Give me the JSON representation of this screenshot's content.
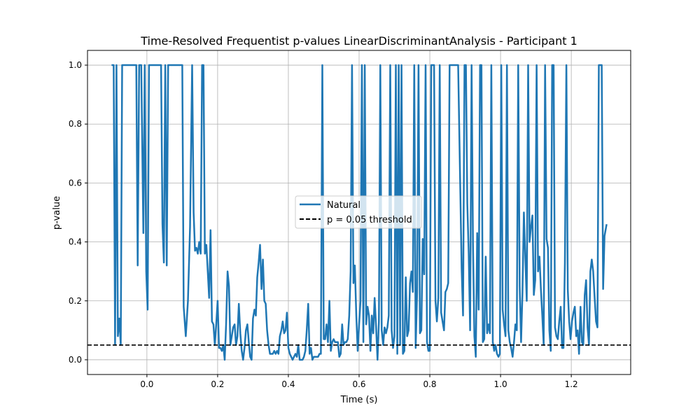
{
  "chart_data": {
    "type": "line",
    "title": "Time-Resolved Frequentist p-values LinearDiscriminantAnalysis - Participant 1",
    "xlabel": "Time (s)",
    "ylabel": "p-value",
    "xlim": [
      -0.168,
      1.368
    ],
    "ylim": [
      -0.05,
      1.05
    ],
    "xticks": [
      0.0,
      0.2,
      0.4,
      0.6,
      0.8,
      1.0,
      1.2
    ],
    "xtick_labels": [
      "0.0",
      "0.2",
      "0.4",
      "0.6",
      "0.8",
      "1.0",
      "1.2"
    ],
    "yticks": [
      0.0,
      0.2,
      0.4,
      0.6,
      0.8,
      1.0
    ],
    "ytick_labels": [
      "0.0",
      "0.2",
      "0.4",
      "0.6",
      "0.8",
      "1.0"
    ],
    "grid": true,
    "legend_position": "center-right",
    "series": [
      {
        "name": "Natural",
        "color": "#1f77b4",
        "style": "solid",
        "x": [
          -0.1,
          -0.094,
          -0.09,
          -0.086,
          -0.082,
          -0.078,
          -0.074,
          -0.07,
          -0.066,
          -0.06,
          -0.05,
          -0.04,
          -0.03,
          -0.026,
          -0.022,
          -0.016,
          -0.01,
          -0.006,
          -0.002,
          0.002,
          0.006,
          0.01,
          0.016,
          0.022,
          0.03,
          0.04,
          0.044,
          0.048,
          0.052,
          0.056,
          0.06,
          0.064,
          0.07,
          0.08,
          0.09,
          0.1,
          0.104,
          0.11,
          0.116,
          0.122,
          0.128,
          0.132,
          0.136,
          0.14,
          0.144,
          0.148,
          0.152,
          0.156,
          0.16,
          0.164,
          0.168,
          0.172,
          0.176,
          0.18,
          0.184,
          0.188,
          0.192,
          0.196,
          0.2,
          0.204,
          0.208,
          0.212,
          0.216,
          0.22,
          0.224,
          0.228,
          0.232,
          0.236,
          0.24,
          0.244,
          0.248,
          0.252,
          0.256,
          0.26,
          0.264,
          0.268,
          0.272,
          0.276,
          0.28,
          0.284,
          0.288,
          0.292,
          0.296,
          0.3,
          0.304,
          0.308,
          0.312,
          0.316,
          0.32,
          0.324,
          0.328,
          0.332,
          0.336,
          0.34,
          0.344,
          0.348,
          0.352,
          0.356,
          0.36,
          0.364,
          0.368,
          0.372,
          0.376,
          0.38,
          0.384,
          0.388,
          0.392,
          0.396,
          0.4,
          0.404,
          0.408,
          0.412,
          0.416,
          0.42,
          0.424,
          0.428,
          0.432,
          0.436,
          0.44,
          0.444,
          0.448,
          0.452,
          0.456,
          0.46,
          0.464,
          0.468,
          0.472,
          0.476,
          0.48,
          0.484,
          0.488,
          0.492,
          0.496,
          0.5,
          0.504,
          0.508,
          0.512,
          0.516,
          0.52,
          0.524,
          0.528,
          0.532,
          0.536,
          0.54,
          0.544,
          0.548,
          0.552,
          0.556,
          0.56,
          0.564,
          0.568,
          0.572,
          0.576,
          0.58,
          0.584,
          0.588,
          0.592,
          0.596,
          0.6,
          0.604,
          0.608,
          0.612,
          0.616,
          0.62,
          0.624,
          0.628,
          0.632,
          0.636,
          0.64,
          0.644,
          0.648,
          0.652,
          0.656,
          0.66,
          0.664,
          0.668,
          0.672,
          0.676,
          0.68,
          0.684,
          0.688,
          0.692,
          0.696,
          0.7,
          0.704,
          0.708,
          0.712,
          0.716,
          0.72,
          0.724,
          0.728,
          0.732,
          0.736,
          0.74,
          0.744,
          0.748,
          0.752,
          0.756,
          0.76,
          0.764,
          0.768,
          0.772,
          0.776,
          0.78,
          0.784,
          0.788,
          0.792,
          0.796,
          0.8,
          0.804,
          0.808,
          0.812,
          0.816,
          0.82,
          0.824,
          0.828,
          0.832,
          0.836,
          0.84,
          0.844,
          0.848,
          0.852,
          0.856,
          0.86,
          0.864,
          0.87,
          0.88,
          0.89,
          0.894,
          0.898,
          0.902,
          0.906,
          0.91,
          0.914,
          0.918,
          0.922,
          0.926,
          0.93,
          0.934,
          0.938,
          0.942,
          0.946,
          0.95,
          0.954,
          0.958,
          0.962,
          0.966,
          0.97,
          0.974,
          0.978,
          0.982,
          0.986,
          0.99,
          0.994,
          0.998,
          1.002,
          1.006,
          1.01,
          1.014,
          1.018,
          1.022,
          1.026,
          1.03,
          1.034,
          1.038,
          1.042,
          1.046,
          1.05,
          1.054,
          1.058,
          1.062,
          1.066,
          1.07,
          1.074,
          1.078,
          1.082,
          1.086,
          1.09,
          1.094,
          1.098,
          1.102,
          1.106,
          1.11,
          1.114,
          1.118,
          1.122,
          1.126,
          1.13,
          1.134,
          1.138,
          1.142,
          1.146,
          1.15,
          1.154,
          1.158,
          1.162,
          1.166,
          1.17,
          1.174,
          1.178,
          1.182,
          1.186,
          1.19,
          1.194,
          1.198,
          1.202,
          1.206,
          1.21,
          1.214,
          1.218,
          1.222,
          1.226,
          1.23,
          1.234,
          1.238,
          1.242,
          1.246,
          1.25,
          1.254,
          1.258,
          1.262,
          1.266,
          1.27,
          1.274,
          1.278,
          1.282,
          1.286,
          1.29,
          1.294,
          1.3
        ],
        "y": [
          1.0,
          1.0,
          0.05,
          1.0,
          0.08,
          0.14,
          0.05,
          1.0,
          1.0,
          1.0,
          1.0,
          1.0,
          1.0,
          0.32,
          1.0,
          1.0,
          0.43,
          1.0,
          0.3,
          0.17,
          1.0,
          1.0,
          1.0,
          1.0,
          1.0,
          1.0,
          0.46,
          0.33,
          1.0,
          0.32,
          1.0,
          1.0,
          1.0,
          1.0,
          1.0,
          1.0,
          0.18,
          0.08,
          0.2,
          0.45,
          1.0,
          0.5,
          0.37,
          0.38,
          0.36,
          0.4,
          0.36,
          1.0,
          1.0,
          0.36,
          0.39,
          0.3,
          0.21,
          0.44,
          0.13,
          0.12,
          0.05,
          0.12,
          0.2,
          0.04,
          0.04,
          0.03,
          0.05,
          0.0,
          0.12,
          0.3,
          0.25,
          0.05,
          0.08,
          0.11,
          0.12,
          0.05,
          0.08,
          0.19,
          0.09,
          0.03,
          0.0,
          0.04,
          0.1,
          0.12,
          0.06,
          0.01,
          0.0,
          0.14,
          0.17,
          0.15,
          0.28,
          0.33,
          0.39,
          0.24,
          0.34,
          0.2,
          0.19,
          0.1,
          0.05,
          0.02,
          0.02,
          0.02,
          0.03,
          0.02,
          0.03,
          0.02,
          0.08,
          0.1,
          0.13,
          0.09,
          0.1,
          0.16,
          0.04,
          0.02,
          0.01,
          0.0,
          0.01,
          0.02,
          0.01,
          0.05,
          0.0,
          0.0,
          0.0,
          0.01,
          0.03,
          0.1,
          0.19,
          0.02,
          0.04,
          0.0,
          0.01,
          0.01,
          0.01,
          0.01,
          0.02,
          0.02,
          1.0,
          0.07,
          0.07,
          0.12,
          0.06,
          0.2,
          0.03,
          0.06,
          0.07,
          0.06,
          0.06,
          0.06,
          0.01,
          0.02,
          0.12,
          0.05,
          0.06,
          0.06,
          0.07,
          0.15,
          0.3,
          1.0,
          0.26,
          0.32,
          0.15,
          0.03,
          0.12,
          0.2,
          1.0,
          0.06,
          1.0,
          0.12,
          0.18,
          0.15,
          0.03,
          0.15,
          0.09,
          0.21,
          0.11,
          0.0,
          0.13,
          1.0,
          0.1,
          0.05,
          0.11,
          0.09,
          0.11,
          0.15,
          1.0,
          0.1,
          0.04,
          0.08,
          1.0,
          0.02,
          1.0,
          0.05,
          1.0,
          0.02,
          0.03,
          0.28,
          0.08,
          0.1,
          0.26,
          0.3,
          0.23,
          1.0,
          0.04,
          0.23,
          1.0,
          0.09,
          0.1,
          0.41,
          0.29,
          1.0,
          0.06,
          0.03,
          0.03,
          1.0,
          1.0,
          1.0,
          0.2,
          0.13,
          0.21,
          1.0,
          0.16,
          0.13,
          0.1,
          0.23,
          0.24,
          0.26,
          1.0,
          1.0,
          1.0,
          1.0,
          1.0,
          0.31,
          0.15,
          1.0,
          1.0,
          0.53,
          0.36,
          0.1,
          1.0,
          0.39,
          0.08,
          0.01,
          0.43,
          0.17,
          1.0,
          1.0,
          0.06,
          0.07,
          0.35,
          0.09,
          0.12,
          0.09,
          1.0,
          0.06,
          0.03,
          0.05,
          0.02,
          0.01,
          0.02,
          1.0,
          0.17,
          0.12,
          0.08,
          1.0,
          0.1,
          0.06,
          0.04,
          0.01,
          0.06,
          0.12,
          0.1,
          1.0,
          0.25,
          0.06,
          0.23,
          0.5,
          0.35,
          0.2,
          1.0,
          0.4,
          0.45,
          0.49,
          0.22,
          0.27,
          1.0,
          0.3,
          0.35,
          0.24,
          0.15,
          0.05,
          1.0,
          0.41,
          0.38,
          0.1,
          0.03,
          1.0,
          1.0,
          0.11,
          0.08,
          0.07,
          0.13,
          0.18,
          0.04,
          0.04,
          0.33,
          1.0,
          0.24,
          0.13,
          0.07,
          0.13,
          0.16,
          0.18,
          0.08,
          0.1,
          0.02,
          0.18,
          0.06,
          0.05,
          0.22,
          0.27,
          0.11,
          0.05,
          0.3,
          0.34,
          0.3,
          0.21,
          0.13,
          0.11,
          1.0,
          1.0,
          1.0,
          0.24,
          0.42,
          0.46
        ]
      },
      {
        "name": "p = 0.05 threshold",
        "color": "#000000",
        "style": "dashed",
        "x": [
          -0.168,
          1.368
        ],
        "y": [
          0.05,
          0.05
        ]
      }
    ]
  }
}
